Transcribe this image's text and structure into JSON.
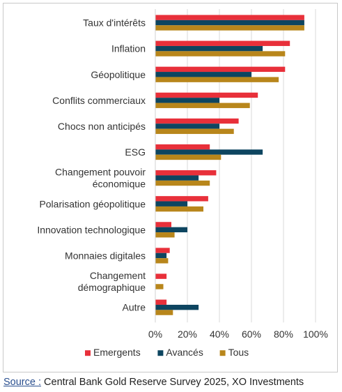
{
  "chart_data": {
    "type": "bar",
    "orientation": "horizontal",
    "title": "",
    "xlabel": "",
    "ylabel": "",
    "xlim": [
      0,
      100
    ],
    "tick_values": [
      0,
      20,
      40,
      60,
      80,
      100
    ],
    "tick_labels": [
      "0%",
      "20%",
      "40%",
      "60%",
      "80%",
      "100%"
    ],
    "grid": "vertical",
    "legend_position": "bottom",
    "categories": [
      [
        "Taux d'intérêts"
      ],
      [
        "Inflation"
      ],
      [
        "Géopolitique"
      ],
      [
        "Conflits commerciaux"
      ],
      [
        "Chocs non anticipés"
      ],
      [
        "ESG"
      ],
      [
        "Changement pouvoir",
        "économique"
      ],
      [
        "Polarisation géopolitique"
      ],
      [
        "Innovation technologique"
      ],
      [
        "Monnaies digitales"
      ],
      [
        "Changement",
        "démographique"
      ],
      [
        "Autre"
      ]
    ],
    "series": [
      {
        "name": "Emergents",
        "color": "#e8303a",
        "values": [
          93,
          84,
          81,
          64,
          52,
          34,
          38,
          33,
          10,
          9,
          7,
          7
        ]
      },
      {
        "name": "Avancés",
        "color": "#0d4560",
        "values": [
          93,
          67,
          60,
          40,
          40,
          67,
          27,
          20,
          20,
          7,
          0,
          27
        ]
      },
      {
        "name": "Tous",
        "color": "#b8861b",
        "values": [
          93,
          81,
          77,
          59,
          49,
          41,
          34,
          30,
          12,
          8,
          5,
          11
        ]
      }
    ]
  },
  "source": {
    "label": "Source :",
    "text": " Central Bank Gold Reserve Survey 2025, XO Investments"
  }
}
